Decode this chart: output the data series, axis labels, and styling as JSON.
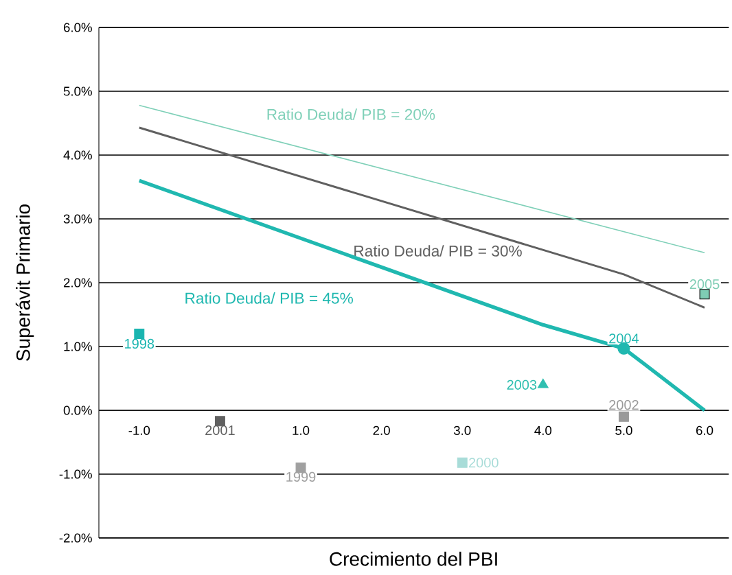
{
  "chart_data": {
    "type": "line",
    "xlabel": "Crecimiento del PBI",
    "ylabel": "Superávit Primario",
    "xlim": [
      -1.5,
      6.3
    ],
    "ylim": [
      -2,
      6
    ],
    "xticks": [
      {
        "value": -1,
        "label": "-1.0"
      },
      {
        "value": 1,
        "label": "1.0"
      },
      {
        "value": 2,
        "label": "2.0"
      },
      {
        "value": 3,
        "label": "3.0"
      },
      {
        "value": 4,
        "label": "4.0"
      },
      {
        "value": 5,
        "label": "5.0"
      },
      {
        "value": 6,
        "label": "6.0"
      }
    ],
    "yticks": [
      {
        "value": -2,
        "label": "-2.0%"
      },
      {
        "value": -1,
        "label": "-1.0%"
      },
      {
        "value": 0,
        "label": "0.0%"
      },
      {
        "value": 1,
        "label": "1.0%"
      },
      {
        "value": 2,
        "label": "2.0%"
      },
      {
        "value": 3,
        "label": "3.0%"
      },
      {
        "value": 4,
        "label": "4.0%"
      },
      {
        "value": 5,
        "label": "5.0%"
      },
      {
        "value": 6,
        "label": "6.0%"
      }
    ],
    "grid": "y",
    "series": [
      {
        "name": "Ratio Deuda/ PIB = 20%",
        "type": "line",
        "color": "#7fd0b8",
        "x": [
          -1,
          6
        ],
        "values": [
          4.78,
          2.47
        ]
      },
      {
        "name": "Ratio Deuda/ PIB = 30%",
        "type": "line",
        "color": "#606060",
        "x": [
          -1,
          5,
          6
        ],
        "values": [
          4.43,
          2.13,
          1.61
        ]
      },
      {
        "name": "Ratio Deuda/ PIB = 45%",
        "type": "line",
        "color": "#20b8b0",
        "x": [
          -1,
          4,
          5,
          5.25,
          6
        ],
        "values": [
          3.6,
          1.34,
          0.97,
          0.73,
          0
        ]
      },
      {
        "name": "1998",
        "type": "scatter",
        "marker": "square",
        "color": "#1ab5b0",
        "x": [
          -1
        ],
        "values": [
          1.2
        ]
      },
      {
        "name": "1999",
        "type": "scatter",
        "marker": "square",
        "color": "#a0a0a0",
        "x": [
          1
        ],
        "values": [
          -0.9
        ]
      },
      {
        "name": "2000",
        "type": "scatter",
        "marker": "square",
        "color": "#a8dcd8",
        "x": [
          3
        ],
        "values": [
          -0.82
        ]
      },
      {
        "name": "2001",
        "type": "scatter",
        "marker": "square",
        "color": "#606060",
        "x": [
          0
        ],
        "values": [
          -0.17
        ]
      },
      {
        "name": "2002",
        "type": "scatter",
        "marker": "square",
        "color": "#9a9a9a",
        "x": [
          5
        ],
        "values": [
          -0.1
        ]
      },
      {
        "name": "2003",
        "type": "scatter",
        "marker": "triangle",
        "color": "#30bfb0",
        "x": [
          4
        ],
        "values": [
          0.4
        ]
      },
      {
        "name": "2004",
        "type": "scatter",
        "marker": "circle",
        "color": "#20b8b0",
        "x": [
          5
        ],
        "values": [
          0.97
        ]
      },
      {
        "name": "2005",
        "type": "scatter",
        "marker": "square",
        "color": "#7fcdb4",
        "x": [
          6
        ],
        "values": [
          1.82
        ]
      }
    ]
  }
}
